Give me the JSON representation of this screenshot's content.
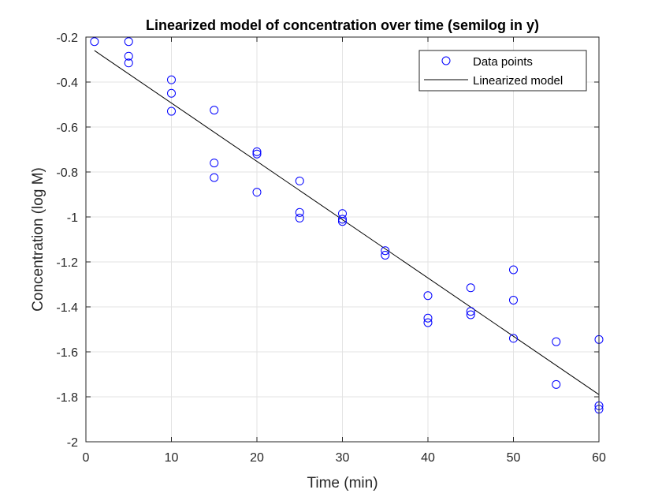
{
  "chart_data": {
    "type": "scatter",
    "title": "Linearized model of concentration over time (semilog in y)",
    "xlabel": "Time (min)",
    "ylabel": "Concentration (log M)",
    "xlim": [
      0,
      60
    ],
    "ylim": [
      -2,
      -0.2
    ],
    "xticks": [
      0,
      10,
      20,
      30,
      40,
      50,
      60
    ],
    "xtick_labels": [
      "0",
      "10",
      "20",
      "30",
      "40",
      "50",
      "60"
    ],
    "yticks": [
      -2,
      -1.8,
      -1.6,
      -1.4,
      -1.2,
      -1,
      -0.8,
      -0.6,
      -0.4,
      -0.2
    ],
    "ytick_labels": [
      "-2",
      "-1.8",
      "-1.6",
      "-1.4",
      "-1.2",
      "-1",
      "-0.8",
      "-0.6",
      "-0.4",
      "-0.2"
    ],
    "grid": true,
    "legend": {
      "position": "top-right",
      "entries": [
        "Data points",
        "Linearized model"
      ]
    },
    "series": [
      {
        "name": "Data points",
        "kind": "markers",
        "marker": "circle",
        "color": "#0000ff",
        "x": [
          1,
          5,
          5,
          5,
          10,
          10,
          10,
          15,
          15,
          15,
          20,
          20,
          20,
          25,
          25,
          25,
          30,
          30,
          30,
          35,
          35,
          40,
          40,
          40,
          45,
          45,
          45,
          50,
          50,
          50,
          55,
          55,
          60,
          60,
          60
        ],
        "y": [
          -0.22,
          -0.22,
          -0.285,
          -0.315,
          -0.39,
          -0.45,
          -0.53,
          -0.525,
          -0.76,
          -0.825,
          -0.71,
          -0.72,
          -0.89,
          -0.84,
          -0.98,
          -1.005,
          -0.985,
          -1.01,
          -1.02,
          -1.15,
          -1.17,
          -1.35,
          -1.45,
          -1.47,
          -1.315,
          -1.42,
          -1.435,
          -1.235,
          -1.37,
          -1.54,
          -1.555,
          -1.745,
          -1.545,
          -1.84,
          -1.855
        ]
      },
      {
        "name": "Linearized model",
        "kind": "line",
        "color": "#000000",
        "x": [
          1,
          60
        ],
        "y": [
          -0.26,
          -1.79
        ]
      }
    ]
  }
}
